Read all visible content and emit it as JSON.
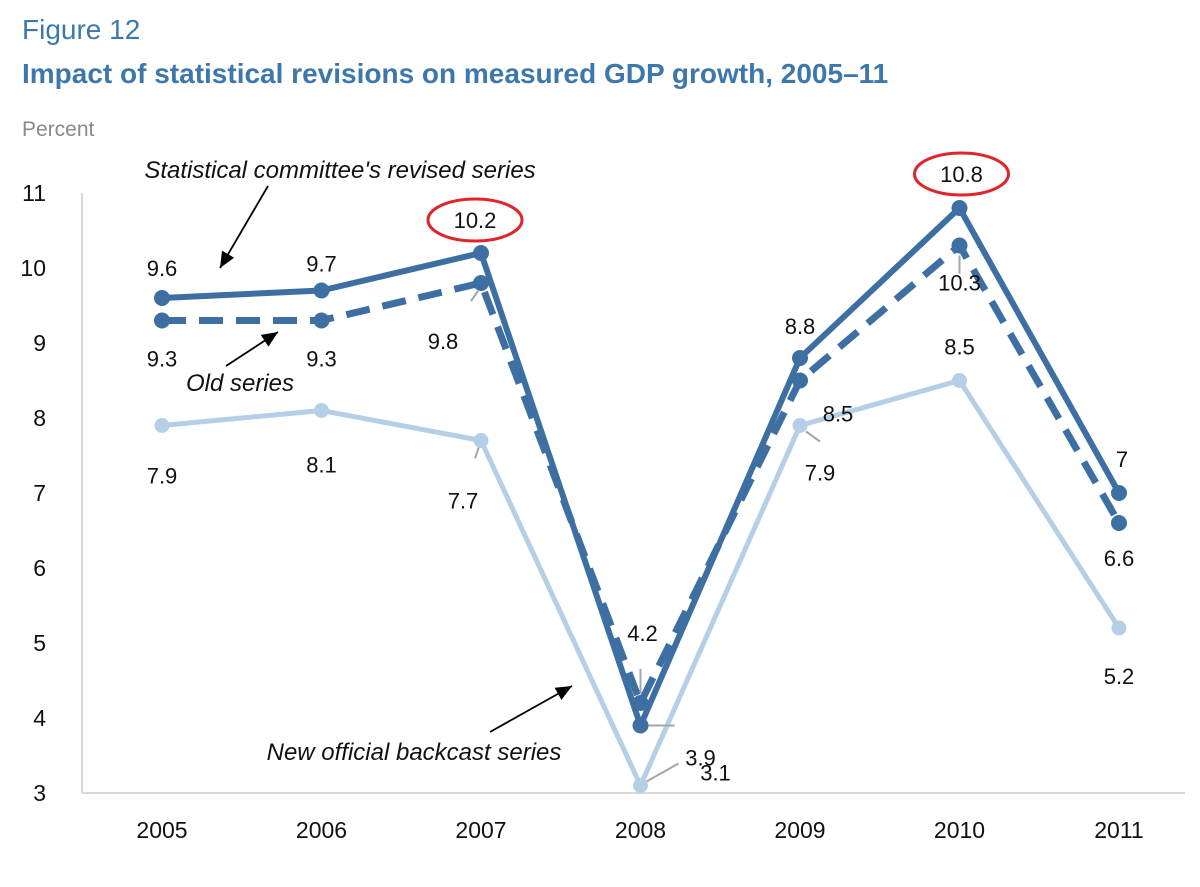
{
  "figure_label": "Figure 12",
  "unit_label": "Percent",
  "colors": {
    "title": "#3d78ad",
    "revised": "#3d6fa3",
    "old": "#3d6fa3",
    "backcast": "#b5cfe6",
    "highlight": "#e0262b"
  },
  "chart_data": {
    "type": "line",
    "title": "Impact of statistical revisions on measured GDP growth, 2005–11",
    "ylabel": "Percent",
    "xlabel": "",
    "ylim": [
      3,
      11
    ],
    "yticks": [
      3,
      4,
      5,
      6,
      7,
      8,
      9,
      10,
      11
    ],
    "categories": [
      "2005",
      "2006",
      "2007",
      "2008",
      "2009",
      "2010",
      "2011"
    ],
    "grid": false,
    "series": [
      {
        "key": "revised",
        "name": "Statistical committee's revised series",
        "style": "solid",
        "values": [
          9.6,
          9.7,
          10.2,
          3.9,
          8.8,
          10.8,
          7.0
        ],
        "labels": [
          "9.6",
          "9.7",
          "10.2",
          "3.9",
          "8.8",
          "10.8",
          "7"
        ]
      },
      {
        "key": "old",
        "name": "Old series",
        "style": "dashed",
        "values": [
          9.3,
          9.3,
          9.8,
          4.2,
          8.5,
          10.3,
          6.6
        ],
        "labels": [
          "9.3",
          "9.3",
          "9.8",
          "4.2",
          "8.5",
          "10.3",
          "6.6"
        ]
      },
      {
        "key": "backcast",
        "name": "New official backcast series",
        "style": "solid-light",
        "values": [
          7.9,
          8.1,
          7.7,
          3.1,
          7.9,
          8.5,
          5.2
        ],
        "labels": [
          "7.9",
          "8.1",
          "7.7",
          "3.1",
          "7.9",
          "8.5",
          "5.2"
        ]
      }
    ],
    "highlighted": [
      {
        "series": "revised",
        "category": "2007",
        "value": "10.2"
      },
      {
        "series": "revised",
        "category": "2010",
        "value": "10.8"
      }
    ]
  }
}
